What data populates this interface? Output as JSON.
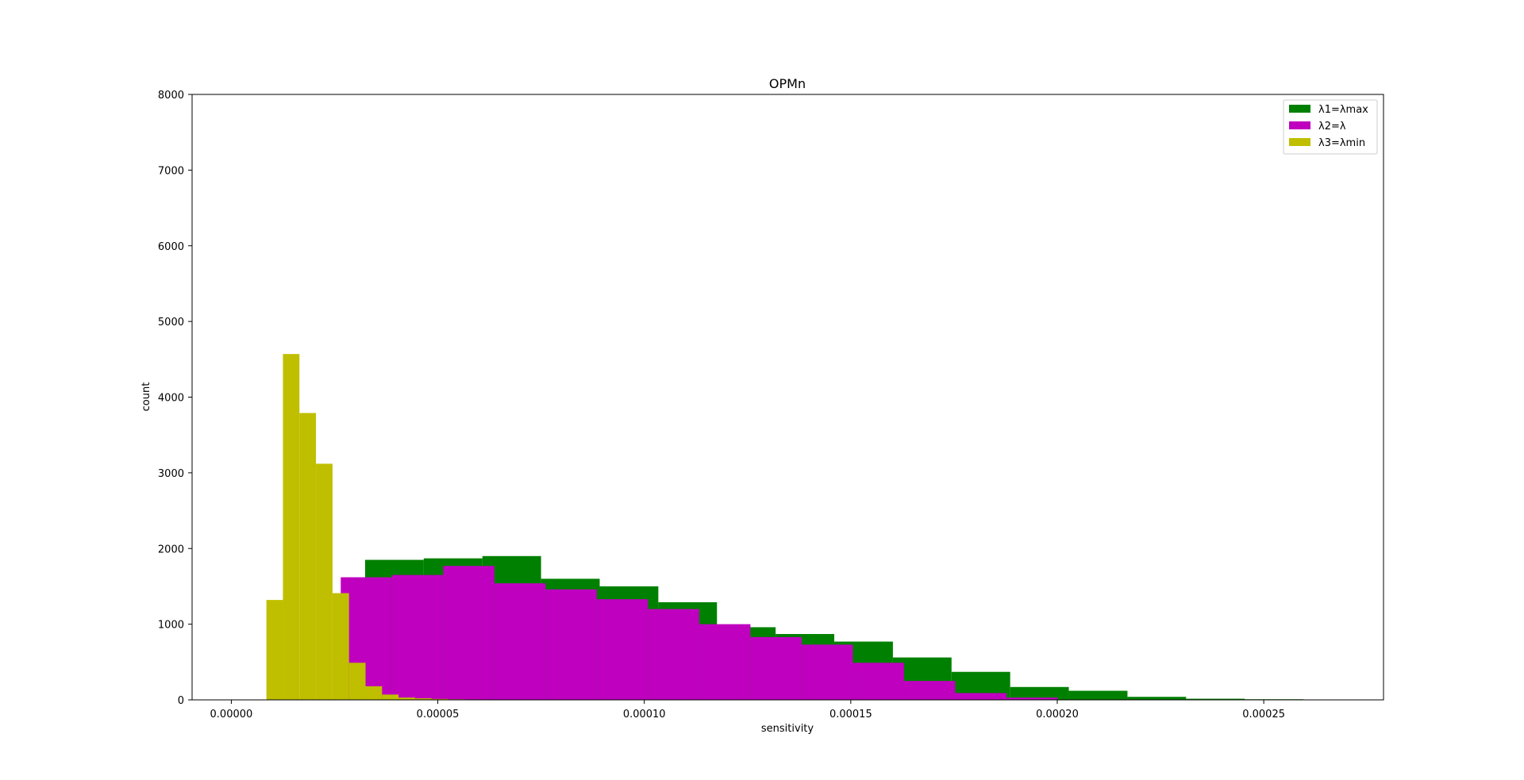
{
  "chart_data": {
    "type": "histogram",
    "title": "OPMn",
    "xlabel": "sensitivity",
    "ylabel": "count",
    "xlim": [
      -9.5e-06,
      0.000279
    ],
    "ylim": [
      0,
      8000
    ],
    "x_ticks": [
      0.0,
      5e-05,
      0.0001,
      0.00015,
      0.0002,
      0.00025
    ],
    "x_tick_labels": [
      "0.00000",
      "0.00005",
      "0.00010",
      "0.00015",
      "0.00020",
      "0.00025"
    ],
    "y_ticks": [
      0,
      1000,
      2000,
      3000,
      4000,
      5000,
      6000,
      7000,
      8000
    ],
    "y_tick_labels": [
      "0",
      "1000",
      "2000",
      "3000",
      "4000",
      "5000",
      "6000",
      "7000",
      "8000"
    ],
    "grid": false,
    "legend_position": "top-right",
    "series": [
      {
        "name": "λ1=λmax",
        "color": "#008000",
        "bin_edges": [
          3.24e-05,
          4.66e-05,
          6.08e-05,
          7.5e-05,
          8.92e-05,
          0.0001034,
          0.0001176,
          0.0001318,
          0.000146,
          0.0001602,
          0.0001744,
          0.0001886,
          0.0002028,
          0.000217,
          0.0002312,
          0.0002454,
          0.0002596,
          0.0002738
        ],
        "counts": [
          1850,
          1870,
          1900,
          1600,
          1500,
          1290,
          960,
          870,
          770,
          560,
          370,
          170,
          120,
          40,
          15,
          8,
          5
        ]
      },
      {
        "name": "λ2=λ",
        "color": "#bf00bf",
        "bin_edges": [
          2.65e-05,
          3.89e-05,
          5.13e-05,
          6.37e-05,
          7.61e-05,
          8.85e-05,
          0.0001009,
          0.0001133,
          0.0001257,
          0.0001381,
          0.0001505,
          0.0001629,
          0.0001753,
          0.0001877,
          0.0002001
        ],
        "counts": [
          1620,
          1650,
          1770,
          1540,
          1460,
          1330,
          1200,
          1000,
          830,
          730,
          490,
          250,
          90,
          30
        ]
      },
      {
        "name": "λ3=λmin",
        "color": "#bfbf00",
        "bin_edges": [
          8.5e-06,
          1.25e-05,
          1.65e-05,
          2.05e-05,
          2.45e-05,
          2.85e-05,
          3.25e-05,
          3.65e-05,
          4.05e-05,
          4.45e-05,
          4.85e-05,
          5.25e-05,
          5.65e-05,
          6.05e-05,
          6.45e-05,
          6.85e-05,
          7.25e-05,
          7.65e-05,
          8.05e-05
        ],
        "counts": [
          1320,
          4570,
          3790,
          3120,
          1410,
          490,
          180,
          70,
          30,
          20,
          12,
          8,
          6,
          5,
          4,
          3,
          2,
          1
        ]
      }
    ]
  }
}
